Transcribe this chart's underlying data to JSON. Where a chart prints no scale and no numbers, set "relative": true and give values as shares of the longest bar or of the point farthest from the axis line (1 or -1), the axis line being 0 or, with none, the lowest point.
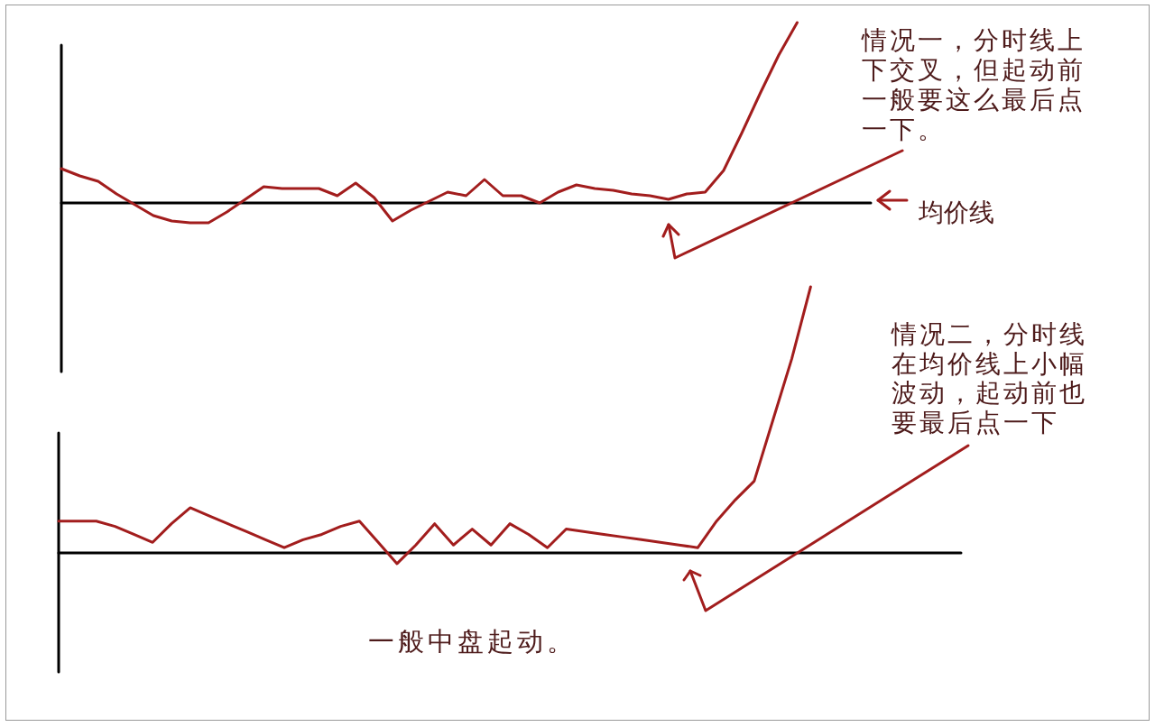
{
  "chart_data": [
    {
      "type": "line",
      "relative": true,
      "tick_labels": false,
      "marker": "none",
      "line_style": "solid",
      "categories": [
        null,
        null,
        null,
        null,
        null,
        null,
        null,
        null,
        null,
        null,
        null,
        null,
        null,
        null,
        null,
        null,
        null,
        null,
        null,
        null,
        null,
        null,
        null,
        null,
        null,
        null,
        null,
        null,
        null,
        null,
        null,
        null,
        null,
        null,
        null,
        null,
        null,
        null,
        null,
        null,
        null,
        null,
        null,
        null,
        null
      ],
      "series": [
        {
          "color": "#a21d1d",
          "values": [
            0.19,
            0.15,
            0.12,
            0.05,
            -0.01,
            -0.07,
            -0.1,
            -0.11,
            -0.11,
            -0.05,
            0.02,
            0.09,
            0.08,
            0.08,
            0.08,
            0.04,
            0.11,
            0.03,
            -0.1,
            -0.04,
            0.01,
            0.06,
            0.04,
            0.13,
            0.04,
            0.04,
            0,
            0.06,
            0.1,
            0.08,
            0.07,
            0.05,
            0.04,
            0.02,
            0.05,
            0.06,
            0.18,
            0.39,
            0.61,
            0.82,
            1,
            null,
            null,
            null,
            null
          ]
        }
      ],
      "ref_lines": [
        {
          "axis": "y",
          "value": 0,
          "label": "均价线",
          "color": "#000000"
        }
      ],
      "annotations": [
        "情况一，分时线上下交叉，但起动前一般要这么最后点一下。"
      ]
    },
    {
      "type": "line",
      "relative": true,
      "tick_labels": false,
      "marker": "none",
      "line_style": "solid",
      "categories": [
        null,
        null,
        null,
        null,
        null,
        null,
        null,
        null,
        null,
        null,
        null,
        null,
        null,
        null,
        null,
        null,
        null,
        null,
        null,
        null,
        null,
        null,
        null,
        null,
        null,
        null,
        null,
        null,
        null,
        null,
        null,
        null,
        null,
        null,
        null,
        null,
        null,
        null,
        null,
        null,
        null,
        null,
        null,
        null,
        null,
        null,
        null,
        null,
        null
      ],
      "series": [
        {
          "color": "#a21d1d",
          "values": [
            0.12,
            0.12,
            0.12,
            0.1,
            0.07,
            0.04,
            0.11,
            0.17,
            0.14,
            0.11,
            0.08,
            0.05,
            0.02,
            0.05,
            0.07,
            0.1,
            0.12,
            0.04,
            -0.04,
            0.03,
            0.11,
            0.03,
            0.09,
            0.03,
            0.11,
            0.07,
            0.02,
            0.09,
            0.08,
            0.07,
            0.06,
            0.05,
            0.04,
            0.03,
            0.02,
            0.12,
            0.2,
            0.27,
            0.5,
            0.73,
            1,
            null,
            null,
            null,
            null,
            null,
            null,
            null,
            null
          ]
        }
      ],
      "ref_lines": [
        {
          "axis": "y",
          "value": 0,
          "color": "#000000"
        }
      ],
      "annotations": [
        "情况二，分时线在均价线上小幅波动，起动前也要最后点一下",
        "一般中盘起动。"
      ]
    }
  ]
}
